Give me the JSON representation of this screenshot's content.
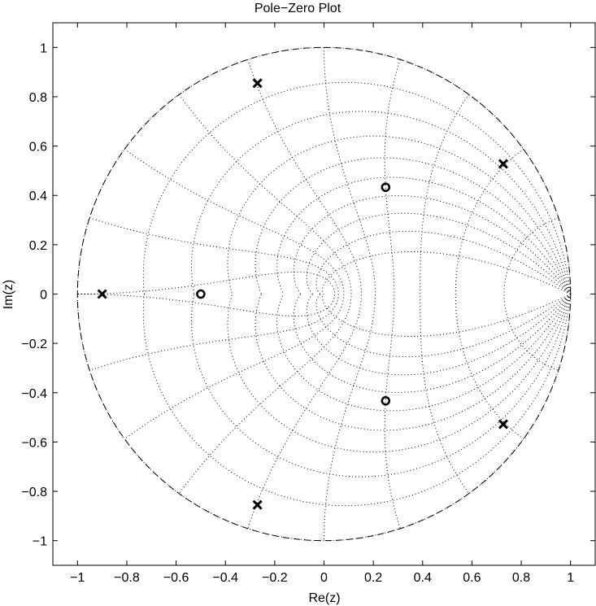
{
  "chart_data": {
    "type": "scatter",
    "title": "Pole−Zero Plot",
    "xlabel": "Re(z)",
    "ylabel": "Im(z)",
    "xlim": [
      -1.1,
      1.1
    ],
    "ylim": [
      -1.1,
      1.1
    ],
    "xticks": [
      -1,
      -0.8,
      -0.6,
      -0.4,
      -0.2,
      0,
      0.2,
      0.4,
      0.6,
      0.8,
      1
    ],
    "yticks": [
      -1,
      -0.8,
      -0.6,
      -0.4,
      -0.2,
      0,
      0.2,
      0.4,
      0.6,
      0.8,
      1
    ],
    "xtick_labels": [
      "−1",
      "−0.8",
      "−0.6",
      "−0.4",
      "−0.2",
      "0",
      "0.2",
      "0.4",
      "0.6",
      "0.8",
      "1"
    ],
    "ytick_labels": [
      "−1",
      "−0.8",
      "−0.6",
      "−0.4",
      "−0.2",
      "0",
      "0.2",
      "0.4",
      "0.6",
      "0.8",
      "1"
    ],
    "unit_circle": true,
    "zgrid": true,
    "grid_zeta": [
      0,
      0.1,
      0.2,
      0.3,
      0.4,
      0.5,
      0.6,
      0.7,
      0.8,
      0.9
    ],
    "grid_wn": [
      0.1,
      0.2,
      0.3,
      0.4,
      0.5,
      0.6,
      0.7,
      0.8,
      0.9,
      1.0
    ],
    "poles": [
      {
        "re": -0.9,
        "im": 0
      },
      {
        "re": -0.27,
        "im": 0.855
      },
      {
        "re": -0.27,
        "im": -0.855
      },
      {
        "re": 0.727,
        "im": 0.528
      },
      {
        "re": 0.727,
        "im": -0.528
      }
    ],
    "zeros": [
      {
        "re": -0.5,
        "im": 0
      },
      {
        "re": 0.25,
        "im": 0.433
      },
      {
        "re": 0.25,
        "im": -0.433
      }
    ],
    "pole_marker": "x",
    "zero_marker": "o",
    "colors": {
      "marks": "#000000",
      "background": "#ffffff"
    }
  }
}
